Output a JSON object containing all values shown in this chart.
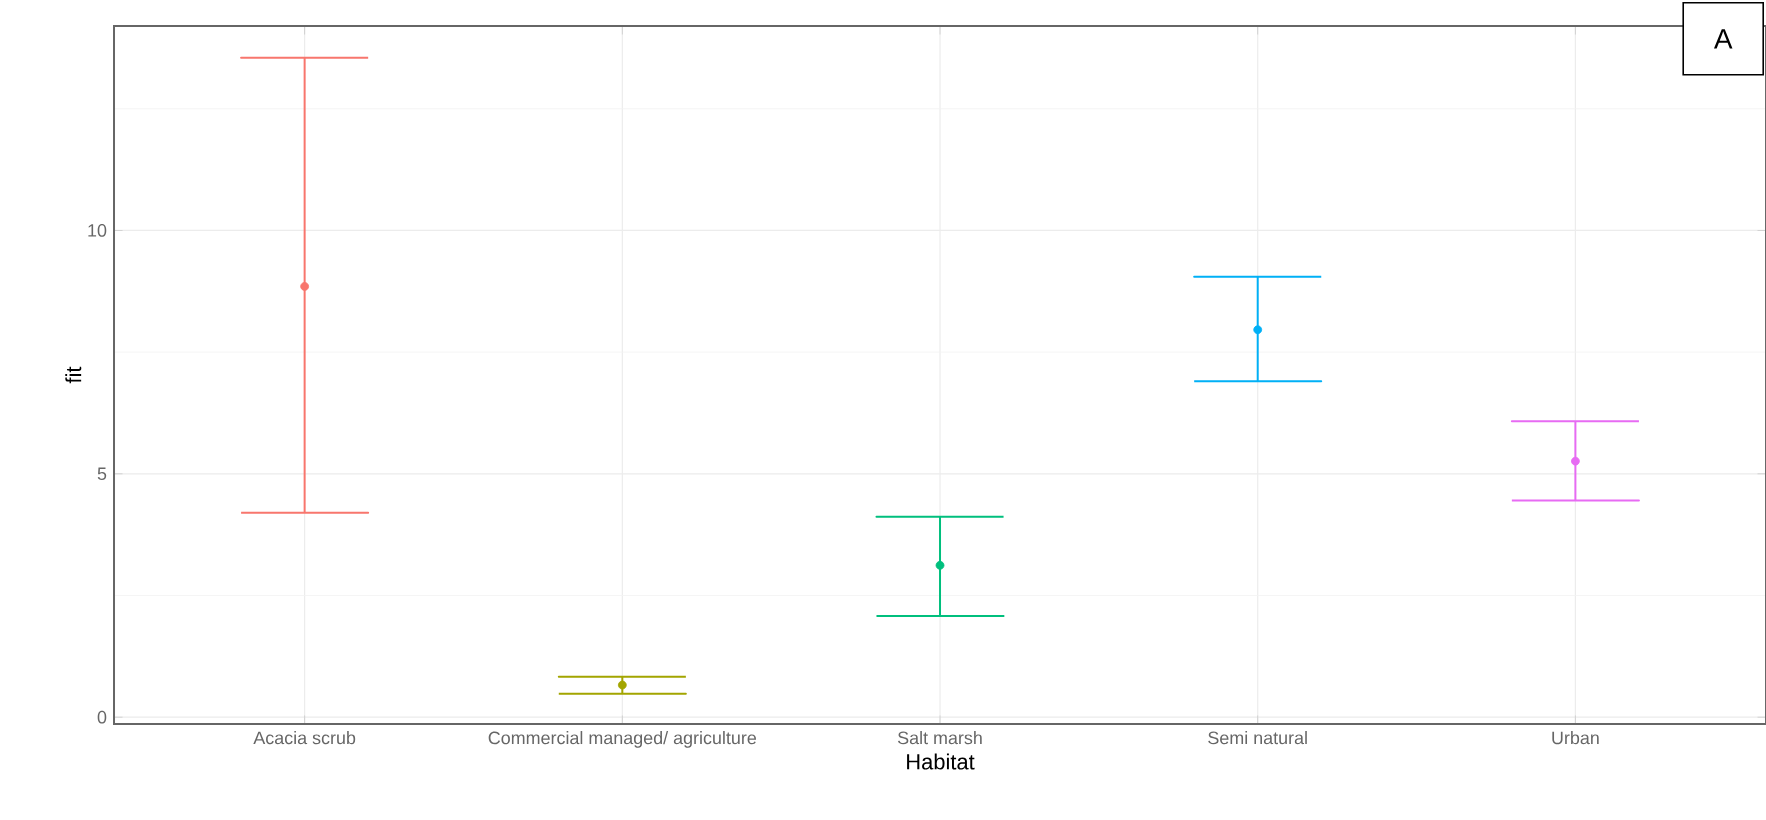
{
  "chart_data": {
    "type": "scatter",
    "xlabel": "Habitat",
    "ylabel": "fit",
    "categories": [
      "Acacia scrub",
      "Commercial managed/ agriculture",
      "Salt marsh",
      "Semi natural",
      "Urban"
    ],
    "values": [
      8.85,
      0.66,
      3.12,
      7.96,
      5.26
    ],
    "errors": [
      [
        4.2,
        13.55
      ],
      [
        0.48,
        0.83
      ],
      [
        2.08,
        4.12
      ],
      [
        6.9,
        9.05
      ],
      [
        4.45,
        6.08
      ]
    ],
    "colors": [
      "#F8766D",
      "#A3A500",
      "#00BF7D",
      "#00B0F6",
      "#E76BF3"
    ],
    "ylim": [
      -0.14,
      14.2
    ],
    "yticks": [
      0,
      {
        "value": 2.5,
        "label": null
      },
      5,
      {
        "value": 7.5,
        "label": null
      },
      10,
      {
        "value": 12.5,
        "label": null
      }
    ],
    "grid": true,
    "marker": "circle",
    "annotations": [
      "A"
    ]
  }
}
